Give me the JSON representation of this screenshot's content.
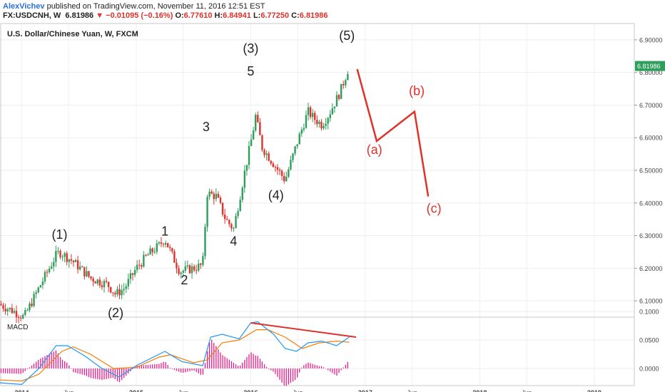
{
  "header": {
    "author": "AlexVichev",
    "published": " published on TradingView.com, November 11, 2016 12:51 EST",
    "symbol": "FX:USDCNH, W",
    "last": "6.81986",
    "change": "−0.01095 (−0.16%)",
    "o_label": "O:",
    "o": "6.77610",
    "h_label": "H:",
    "h": "6.84941",
    "l_label": "L:",
    "l": "6.77250",
    "c_label": "C:",
    "c": "6.81986"
  },
  "colors": {
    "up": "#2e9e5b",
    "down": "#e0312b",
    "macd": "#2196f3",
    "signal": "#f57c00",
    "hist": "#e91e8c",
    "annotation": "#e0312b"
  },
  "chart_data": [
    {
      "type": "candlestick",
      "title": "U.S. Dollar/Chinese Yuan, W, FXCM",
      "ylim": [
        6.05,
        6.95
      ],
      "yticks": [
        "6.10000",
        "6.20000",
        "6.30000",
        "6.40000",
        "6.50000",
        "6.60000",
        "6.70000",
        "6.80000",
        "6.90000"
      ],
      "last_price_label": "6.81986",
      "xticks": [
        "2014",
        "Jun",
        "2015",
        "Jun",
        "2016",
        "Jun",
        "2017",
        "Jun",
        "2018",
        "Jun",
        "2019"
      ],
      "close_path": [
        [
          2013.8,
          6.09
        ],
        [
          2013.92,
          6.07
        ],
        [
          2014.02,
          6.05
        ],
        [
          2014.15,
          6.14
        ],
        [
          2014.3,
          6.24
        ],
        [
          2014.33,
          6.25
        ],
        [
          2014.45,
          6.22
        ],
        [
          2014.6,
          6.17
        ],
        [
          2014.75,
          6.15
        ],
        [
          2014.82,
          6.12
        ],
        [
          2014.9,
          6.14
        ],
        [
          2015.0,
          6.2
        ],
        [
          2015.1,
          6.24
        ],
        [
          2015.2,
          6.27
        ],
        [
          2015.25,
          6.29
        ],
        [
          2015.3,
          6.25
        ],
        [
          2015.38,
          6.19
        ],
        [
          2015.5,
          6.2
        ],
        [
          2015.58,
          6.21
        ],
        [
          2015.61,
          6.38
        ],
        [
          2015.62,
          6.43
        ],
        [
          2015.7,
          6.42
        ],
        [
          2015.78,
          6.35
        ],
        [
          2015.85,
          6.32
        ],
        [
          2015.95,
          6.5
        ],
        [
          2016.02,
          6.62
        ],
        [
          2016.04,
          6.67
        ],
        [
          2016.1,
          6.57
        ],
        [
          2016.2,
          6.52
        ],
        [
          2016.3,
          6.47
        ],
        [
          2016.4,
          6.58
        ],
        [
          2016.5,
          6.68
        ],
        [
          2016.55,
          6.66
        ],
        [
          2016.62,
          6.64
        ],
        [
          2016.68,
          6.67
        ],
        [
          2016.78,
          6.74
        ],
        [
          2016.86,
          6.82
        ]
      ],
      "wave_labels": [
        {
          "text": "(1)",
          "x": 2014.33,
          "y": 6.29
        },
        {
          "text": "(2)",
          "x": 2014.82,
          "y": 6.05
        },
        {
          "text": "1",
          "x": 2015.25,
          "y": 6.3
        },
        {
          "text": "2",
          "x": 2015.42,
          "y": 6.15
        },
        {
          "text": "3",
          "x": 2015.61,
          "y": 6.62
        },
        {
          "text": "4",
          "x": 2015.85,
          "y": 6.27
        },
        {
          "text": "(3)",
          "x": 2016.0,
          "y": 6.86
        },
        {
          "text": "5",
          "x": 2016.0,
          "y": 6.79
        },
        {
          "text": "(4)",
          "x": 2016.22,
          "y": 6.41
        },
        {
          "text": "(5)",
          "x": 2016.84,
          "y": 6.9
        }
      ],
      "projection": {
        "points": [
          [
            2016.93,
            6.81
          ],
          [
            2017.1,
            6.59
          ],
          [
            2017.43,
            6.68
          ],
          [
            2017.55,
            6.42
          ]
        ],
        "labels": [
          {
            "text": "(a)",
            "x": 2017.08,
            "y": 6.55
          },
          {
            "text": "(b)",
            "x": 2017.45,
            "y": 6.73
          },
          {
            "text": "(c)",
            "x": 2017.6,
            "y": 6.37
          }
        ]
      }
    },
    {
      "type": "line",
      "title": "MACD",
      "ylim": [
        -0.03,
        0.09
      ],
      "yticks": [
        "0.0000",
        "0.0500",
        "0.1000"
      ],
      "series": [
        {
          "name": "MACD",
          "points": [
            [
              2013.8,
              -0.025
            ],
            [
              2014.0,
              -0.028
            ],
            [
              2014.15,
              0.0
            ],
            [
              2014.3,
              0.04
            ],
            [
              2014.4,
              0.04
            ],
            [
              2014.55,
              0.022
            ],
            [
              2014.7,
              0.0
            ],
            [
              2014.85,
              -0.015
            ],
            [
              2015.0,
              0.005
            ],
            [
              2015.15,
              0.02
            ],
            [
              2015.25,
              0.03
            ],
            [
              2015.4,
              0.012
            ],
            [
              2015.58,
              0.005
            ],
            [
              2015.65,
              0.055
            ],
            [
              2015.75,
              0.06
            ],
            [
              2015.9,
              0.052
            ],
            [
              2016.0,
              0.08
            ],
            [
              2016.06,
              0.082
            ],
            [
              2016.2,
              0.06
            ],
            [
              2016.3,
              0.035
            ],
            [
              2016.4,
              0.03
            ],
            [
              2016.5,
              0.045
            ],
            [
              2016.62,
              0.048
            ],
            [
              2016.75,
              0.04
            ],
            [
              2016.86,
              0.055
            ]
          ]
        },
        {
          "name": "Signal",
          "points": [
            [
              2013.8,
              -0.02
            ],
            [
              2014.0,
              -0.022
            ],
            [
              2014.15,
              -0.01
            ],
            [
              2014.35,
              0.03
            ],
            [
              2014.45,
              0.038
            ],
            [
              2014.6,
              0.025
            ],
            [
              2014.8,
              0.0
            ],
            [
              2015.0,
              0.002
            ],
            [
              2015.2,
              0.02
            ],
            [
              2015.3,
              0.024
            ],
            [
              2015.5,
              0.01
            ],
            [
              2015.62,
              0.015
            ],
            [
              2015.75,
              0.045
            ],
            [
              2015.9,
              0.05
            ],
            [
              2016.05,
              0.068
            ],
            [
              2016.15,
              0.068
            ],
            [
              2016.3,
              0.055
            ],
            [
              2016.45,
              0.035
            ],
            [
              2016.6,
              0.045
            ],
            [
              2016.75,
              0.048
            ],
            [
              2016.86,
              0.046
            ]
          ]
        }
      ],
      "divergence_line": [
        [
          2016.0,
          0.08
        ],
        [
          2016.92,
          0.055
        ]
      ]
    }
  ]
}
